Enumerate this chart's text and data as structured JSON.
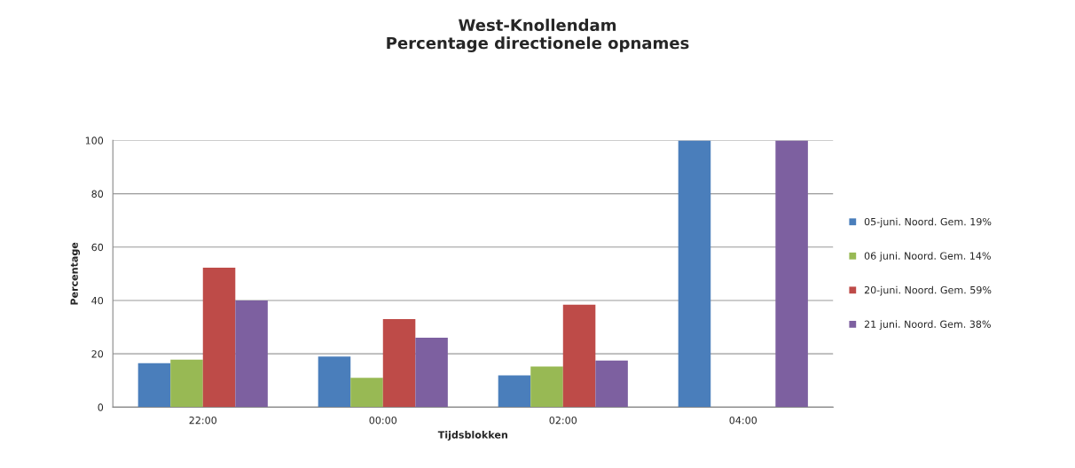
{
  "chart_data": {
    "type": "bar",
    "title": "West-Knollendam\nPercentage directionele opnames",
    "xlabel": "Tijdsblokken",
    "ylabel": "Percentage",
    "categories": [
      "22:00",
      "00:00",
      "02:00",
      "04:00"
    ],
    "series": [
      {
        "name": "05-juni. Noord. Gem. 19%",
        "color": "#4a7ebb",
        "values": [
          16.5,
          19,
          11.9,
          100
        ]
      },
      {
        "name": "06 juni. Noord. Gem. 14%",
        "color": "#98b954",
        "values": [
          17.8,
          11,
          15.2,
          null
        ]
      },
      {
        "name": "20-juni. Noord. Gem. 59%",
        "color": "#be4b48",
        "values": [
          52.3,
          33,
          38.4,
          null
        ]
      },
      {
        "name": "21 juni. Noord. Gem. 38%",
        "color": "#7d60a0",
        "values": [
          40,
          26,
          17.5,
          100
        ]
      }
    ],
    "ylim": [
      0,
      100
    ],
    "yticks": [
      0,
      20,
      40,
      60,
      80,
      100
    ],
    "grid": "y",
    "legend": "right"
  }
}
